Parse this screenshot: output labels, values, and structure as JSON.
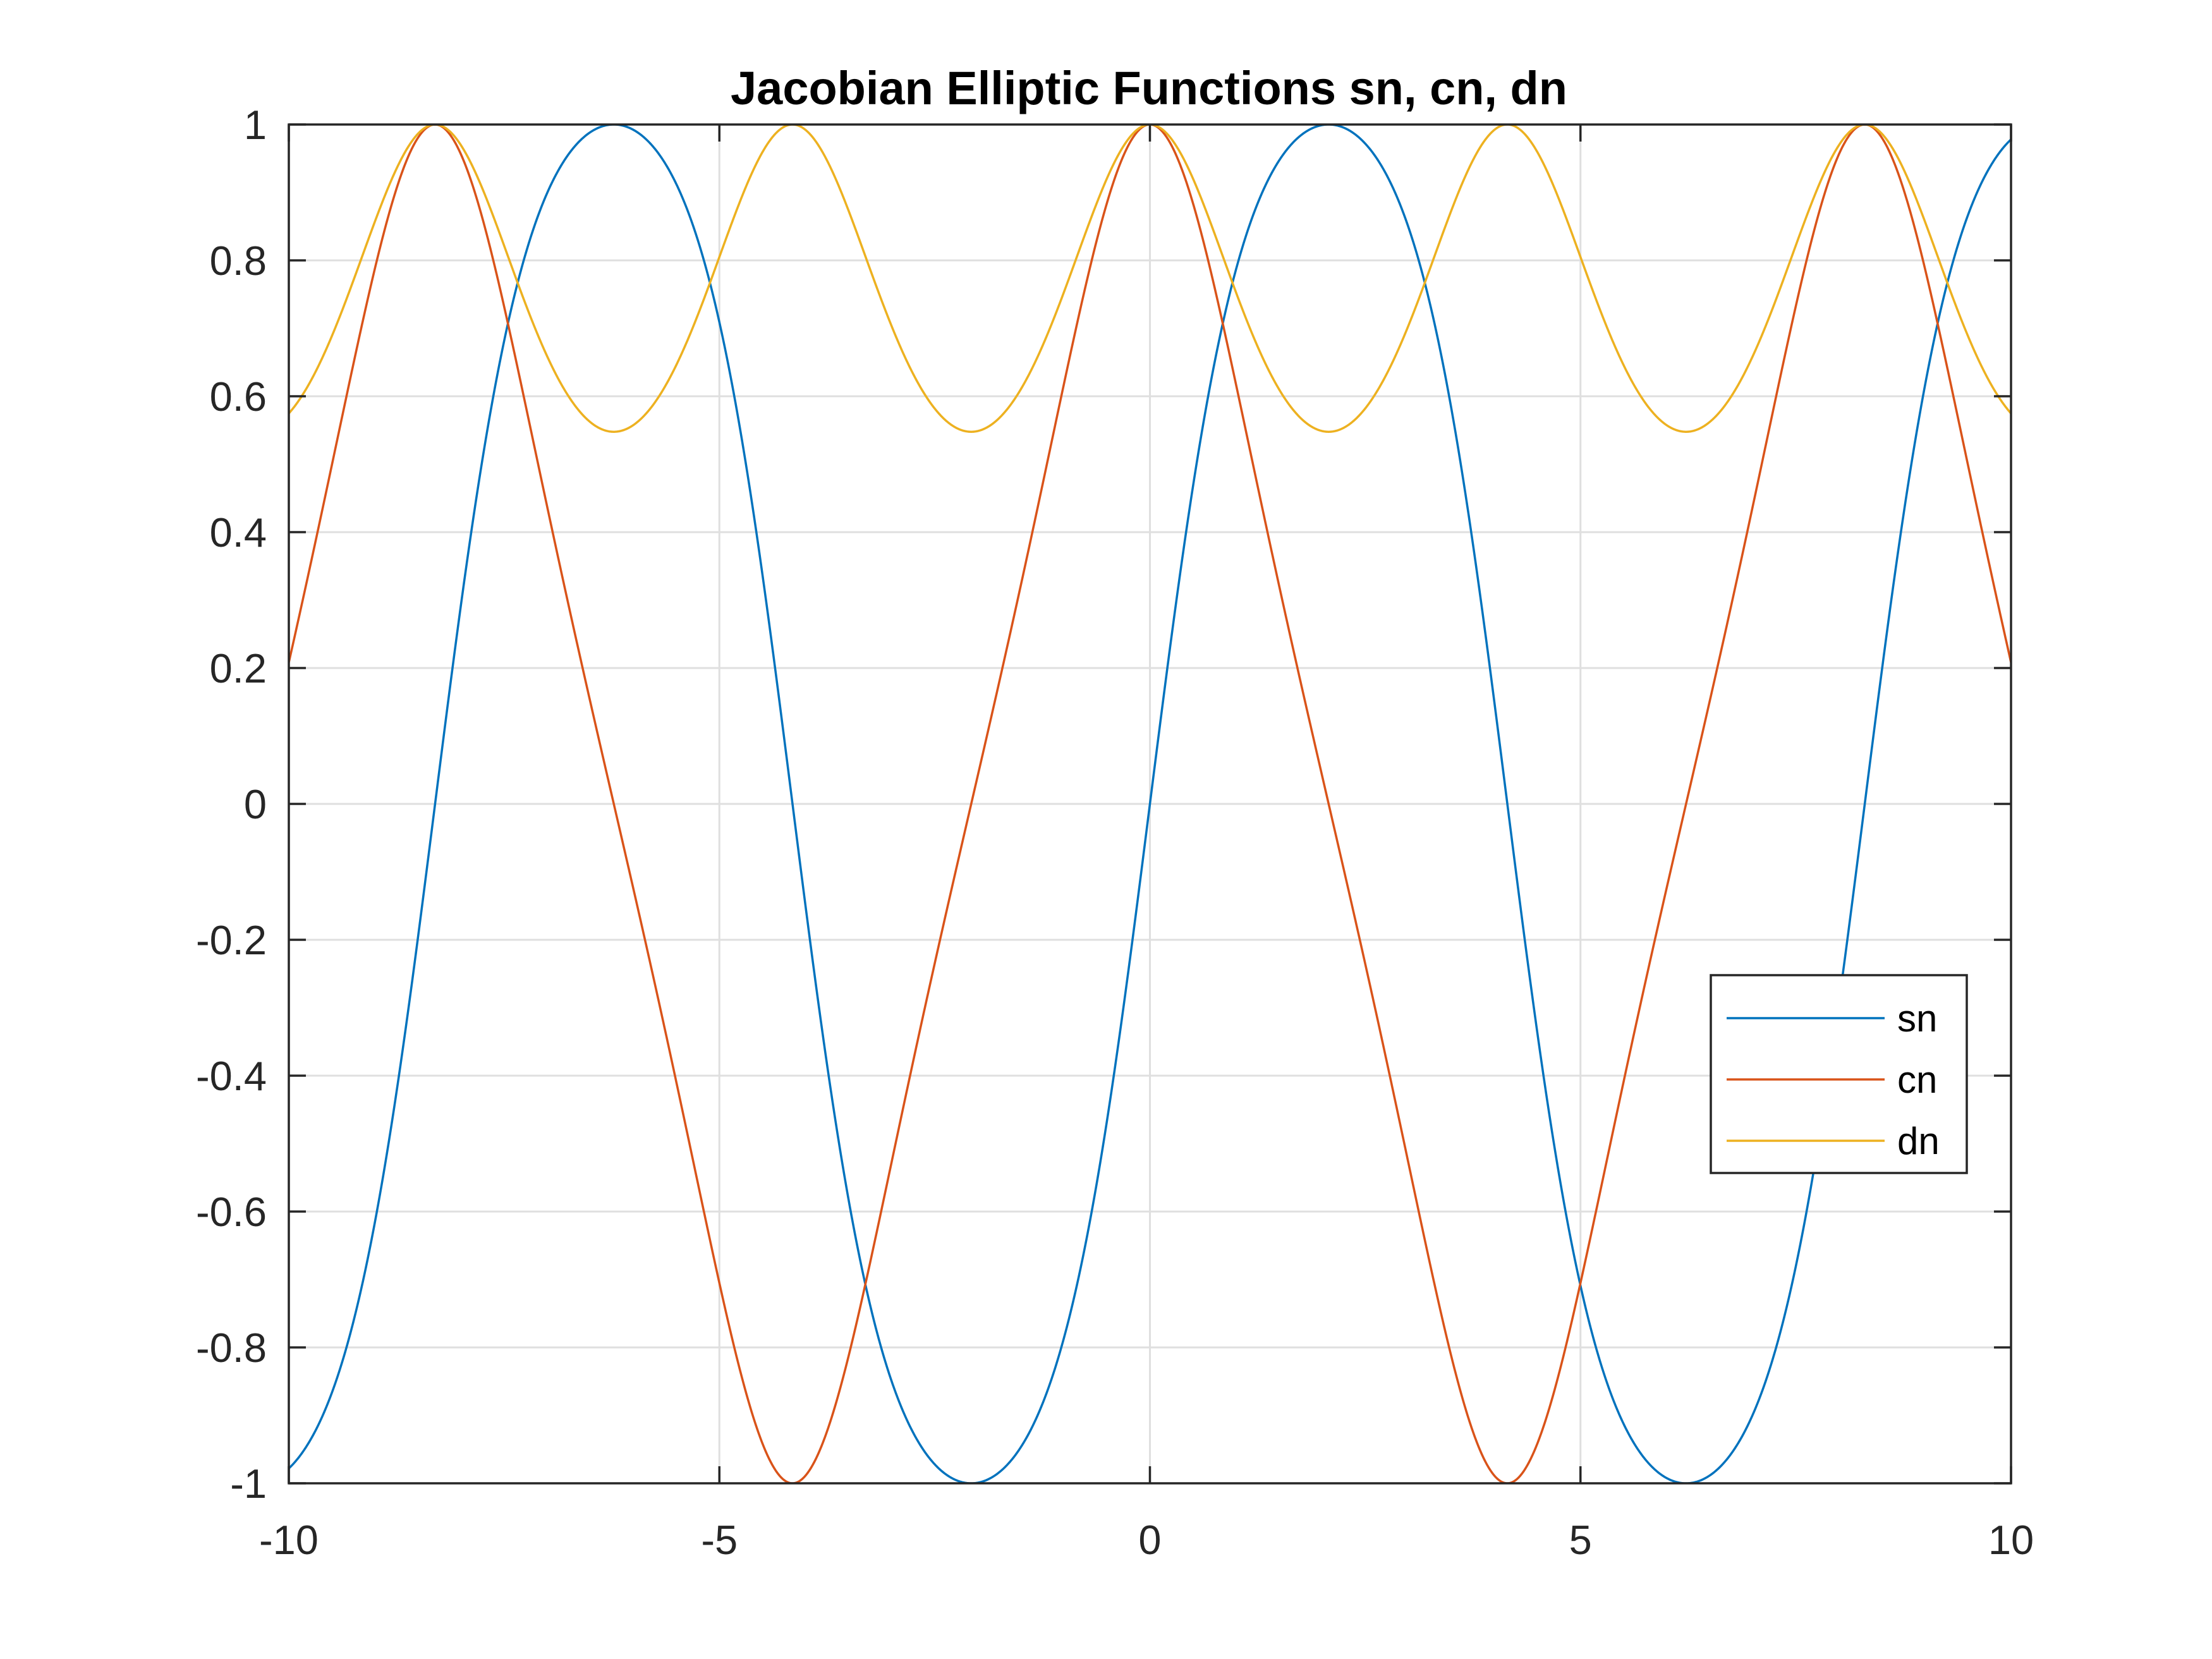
{
  "chart_data": {
    "type": "line",
    "title": "Jacobian Elliptic Functions sn, cn, dn",
    "xlabel": "",
    "ylabel": "",
    "xlim": [
      -10,
      10
    ],
    "ylim": [
      -1,
      1
    ],
    "grid": true,
    "legend_position": "bottom-right",
    "x_ticks": [
      -10,
      -5,
      0,
      5,
      10
    ],
    "x_tick_labels": [
      "-10",
      "-5",
      "0",
      "5",
      "10"
    ],
    "y_ticks": [
      -1,
      -0.8,
      -0.6,
      -0.4,
      -0.2,
      0,
      0.2,
      0.4,
      0.6,
      0.8,
      1
    ],
    "y_tick_labels": [
      "-1",
      "-0.8",
      "-0.6",
      "-0.4",
      "-0.2",
      "0",
      "0.2",
      "0.4",
      "0.6",
      "0.8",
      "1"
    ],
    "parameter_m": 0.7,
    "x": [
      -10,
      -9,
      -8,
      -7,
      -6,
      -5,
      -4,
      -3,
      -2,
      -1,
      0,
      1,
      2,
      3,
      4,
      5,
      6,
      7,
      8,
      9,
      10
    ],
    "series": [
      {
        "name": "sn",
        "color": "#0072BD",
        "values": [
          -0.98,
          -0.45,
          0.34,
          0.92,
          0.99,
          0.68,
          -0.08,
          -0.76,
          -1.0,
          -0.82,
          0.0,
          0.82,
          1.0,
          0.76,
          0.08,
          -0.68,
          -0.99,
          -0.92,
          -0.34,
          0.45,
          0.98
        ]
      },
      {
        "name": "cn",
        "color": "#D95319",
        "values": [
          0.21,
          0.89,
          0.94,
          0.39,
          -0.12,
          -0.73,
          -1.0,
          -0.65,
          -0.05,
          0.57,
          1.0,
          0.57,
          -0.05,
          -0.65,
          -1.0,
          -0.73,
          -0.12,
          0.39,
          0.94,
          0.89,
          0.21
        ]
      },
      {
        "name": "dn",
        "color": "#EDB120",
        "values": [
          0.58,
          0.92,
          0.96,
          0.64,
          0.55,
          0.82,
          1.0,
          0.76,
          0.55,
          0.73,
          1.0,
          0.73,
          0.55,
          0.76,
          1.0,
          0.82,
          0.55,
          0.64,
          0.96,
          0.92,
          0.58
        ]
      }
    ]
  },
  "colors": {
    "axes": "#262626",
    "grid": "#dfdfdf",
    "background": "#ffffff"
  }
}
